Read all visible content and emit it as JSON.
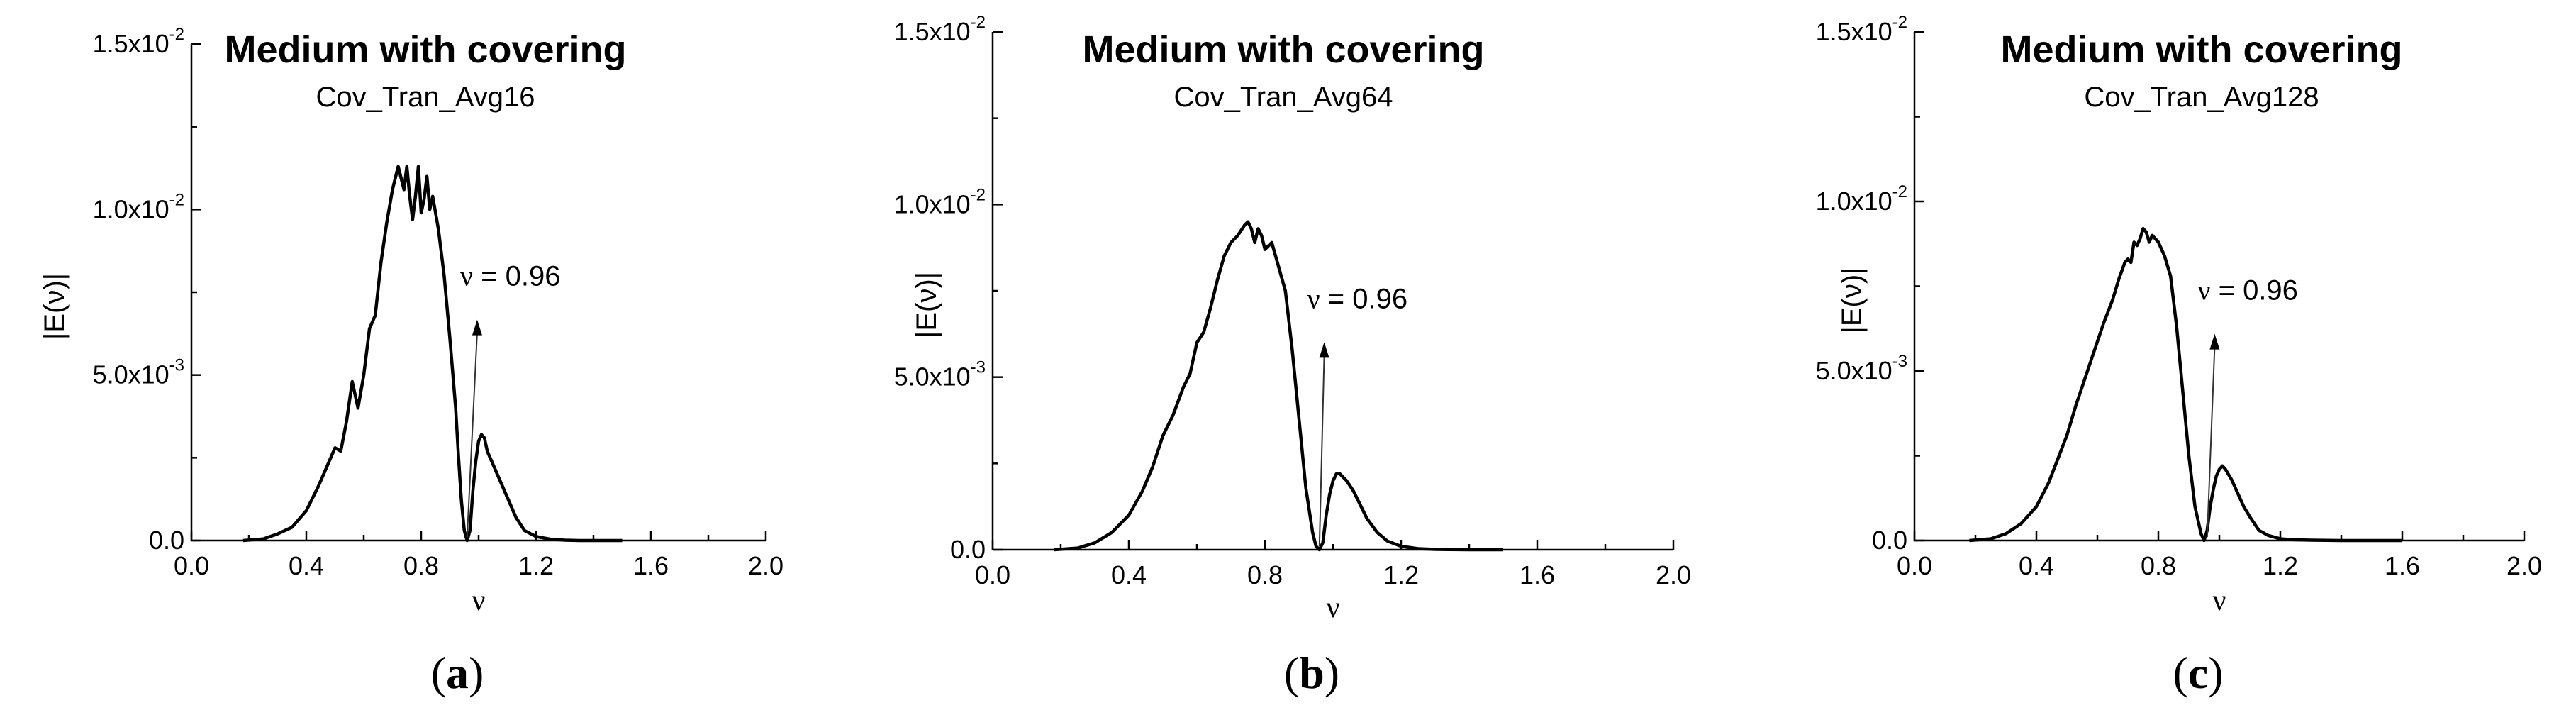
{
  "chart_data": [
    {
      "type": "line",
      "panel_label": "a",
      "title": "Medium with covering",
      "subtitle": "Cov_Tran_Avg16",
      "xlabel": "ν",
      "ylabel": "|E(ν)|",
      "xlim": [
        0.0,
        2.0
      ],
      "ylim": [
        0.0,
        0.015
      ],
      "xticks": [
        0.0,
        0.4,
        0.8,
        1.2,
        1.6,
        2.0
      ],
      "xtick_labels": [
        "0.0",
        "0.4",
        "0.8",
        "1.2",
        "1.6",
        "2.0"
      ],
      "yticks": [
        0.0,
        0.005,
        0.01,
        0.015
      ],
      "ytick_labels": [
        {
          "base": "0.0",
          "exp": ""
        },
        {
          "base": "5.0x10",
          "exp": "-3"
        },
        {
          "base": "1.0x10",
          "exp": "-2"
        },
        {
          "base": "1.5x10",
          "exp": "-2"
        }
      ],
      "annotation": {
        "prefix": "ν",
        "text": " = 0.96",
        "x": 0.96,
        "text_x": 0.99,
        "text_y": 0.0077
      },
      "series": [
        {
          "x": [
            0.18,
            0.25,
            0.3,
            0.35,
            0.4,
            0.44,
            0.47,
            0.5,
            0.52,
            0.54,
            0.56,
            0.58,
            0.6,
            0.62,
            0.64,
            0.66,
            0.68,
            0.7,
            0.72,
            0.74,
            0.75,
            0.76,
            0.77,
            0.78,
            0.79,
            0.8,
            0.81,
            0.82,
            0.83,
            0.84,
            0.86,
            0.88,
            0.9,
            0.92,
            0.93,
            0.94,
            0.95,
            0.96,
            0.97,
            0.98,
            0.99,
            1.0,
            1.01,
            1.02,
            1.03,
            1.05,
            1.07,
            1.1,
            1.13,
            1.16,
            1.2,
            1.25,
            1.3,
            1.35,
            1.4,
            1.5
          ],
          "y": [
            0.0,
            5e-05,
            0.0002,
            0.0004,
            0.0009,
            0.0016,
            0.0022,
            0.0028,
            0.0027,
            0.0036,
            0.0048,
            0.004,
            0.005,
            0.0064,
            0.0068,
            0.0084,
            0.0096,
            0.0106,
            0.0113,
            0.0106,
            0.0113,
            0.0104,
            0.0097,
            0.0104,
            0.0113,
            0.0099,
            0.0103,
            0.011,
            0.01,
            0.0104,
            0.0094,
            0.008,
            0.0061,
            0.004,
            0.0025,
            0.0012,
            0.0003,
            0.0,
            0.0003,
            0.0015,
            0.0024,
            0.003,
            0.0032,
            0.0031,
            0.0027,
            0.0023,
            0.0019,
            0.0013,
            0.0007,
            0.0003,
            0.00012,
            4e-05,
            1e-05,
            0.0,
            0.0,
            0.0
          ]
        }
      ]
    },
    {
      "type": "line",
      "panel_label": "b",
      "title": "Medium with covering",
      "subtitle": "Cov_Tran_Avg64",
      "xlabel": "ν",
      "ylabel": "|E(ν)|",
      "xlim": [
        0.0,
        2.0
      ],
      "ylim": [
        0.0,
        0.015
      ],
      "xticks": [
        0.0,
        0.4,
        0.8,
        1.2,
        1.6,
        2.0
      ],
      "xtick_labels": [
        "0.0",
        "0.4",
        "0.8",
        "1.2",
        "1.6",
        "2.0"
      ],
      "yticks": [
        0.0,
        0.005,
        0.01,
        0.015
      ],
      "ytick_labels": [
        {
          "base": "0.0",
          "exp": ""
        },
        {
          "base": "5.0x10",
          "exp": "-3"
        },
        {
          "base": "1.0x10",
          "exp": "-2"
        },
        {
          "base": "1.5x10",
          "exp": "-2"
        }
      ],
      "annotation": {
        "prefix": "ν",
        "text": " = 0.96",
        "x": 0.96,
        "text_x": 0.97,
        "text_y": 0.007
      },
      "series": [
        {
          "x": [
            0.18,
            0.25,
            0.3,
            0.35,
            0.4,
            0.44,
            0.47,
            0.5,
            0.53,
            0.56,
            0.58,
            0.6,
            0.62,
            0.64,
            0.66,
            0.68,
            0.7,
            0.72,
            0.74,
            0.75,
            0.76,
            0.77,
            0.78,
            0.79,
            0.8,
            0.82,
            0.84,
            0.86,
            0.88,
            0.9,
            0.92,
            0.94,
            0.95,
            0.96,
            0.97,
            0.98,
            0.99,
            1.0,
            1.01,
            1.02,
            1.04,
            1.06,
            1.08,
            1.1,
            1.13,
            1.16,
            1.2,
            1.25,
            1.3,
            1.4,
            1.5
          ],
          "y": [
            0.0,
            5e-05,
            0.0002,
            0.0005,
            0.001,
            0.0017,
            0.0024,
            0.0033,
            0.0039,
            0.0047,
            0.0051,
            0.006,
            0.0063,
            0.007,
            0.0078,
            0.0085,
            0.0089,
            0.0091,
            0.0094,
            0.0095,
            0.0093,
            0.0089,
            0.0093,
            0.0091,
            0.0087,
            0.0089,
            0.0082,
            0.0075,
            0.0058,
            0.0038,
            0.0018,
            0.0005,
            0.0001,
            0.0,
            0.0002,
            0.001,
            0.0016,
            0.002,
            0.0022,
            0.0022,
            0.002,
            0.0017,
            0.0013,
            0.0009,
            0.0005,
            0.00025,
            0.0001,
            3e-05,
            1e-05,
            0.0,
            0.0
          ]
        }
      ]
    },
    {
      "type": "line",
      "panel_label": "c",
      "title": "Medium with covering",
      "subtitle": "Cov_Tran_Avg128",
      "xlabel": "ν",
      "ylabel": "|E(ν)|",
      "xlim": [
        0.0,
        2.0
      ],
      "ylim": [
        0.0,
        0.015
      ],
      "xticks": [
        0.0,
        0.4,
        0.8,
        1.2,
        1.6,
        2.0
      ],
      "xtick_labels": [
        "0.0",
        "0.4",
        "0.8",
        "1.2",
        "1.6",
        "2.0"
      ],
      "yticks": [
        0.0,
        0.005,
        0.01,
        0.015
      ],
      "ytick_labels": [
        {
          "base": "0.0",
          "exp": ""
        },
        {
          "base": "5.0x10",
          "exp": "-3"
        },
        {
          "base": "1.0x10",
          "exp": "-2"
        },
        {
          "base": "1.5x10",
          "exp": "-2"
        }
      ],
      "annotation": {
        "prefix": "ν",
        "text": " = 0.96",
        "x": 0.96,
        "text_x": 0.98,
        "text_y": 0.0071
      },
      "series": [
        {
          "x": [
            0.18,
            0.25,
            0.3,
            0.35,
            0.4,
            0.44,
            0.47,
            0.5,
            0.53,
            0.56,
            0.59,
            0.62,
            0.65,
            0.67,
            0.69,
            0.7,
            0.71,
            0.72,
            0.73,
            0.74,
            0.75,
            0.76,
            0.77,
            0.78,
            0.79,
            0.8,
            0.82,
            0.84,
            0.86,
            0.88,
            0.9,
            0.92,
            0.94,
            0.95,
            0.96,
            0.97,
            0.98,
            0.99,
            1.0,
            1.01,
            1.02,
            1.04,
            1.06,
            1.08,
            1.1,
            1.13,
            1.16,
            1.2,
            1.25,
            1.3,
            1.4,
            1.5,
            1.6
          ],
          "y": [
            0.0,
            5e-05,
            0.0002,
            0.0005,
            0.001,
            0.0017,
            0.0024,
            0.0031,
            0.004,
            0.0048,
            0.0056,
            0.0064,
            0.0071,
            0.0077,
            0.0082,
            0.0083,
            0.0082,
            0.0088,
            0.0087,
            0.0089,
            0.0092,
            0.0091,
            0.0088,
            0.009,
            0.0089,
            0.0088,
            0.0084,
            0.0078,
            0.0063,
            0.0044,
            0.0025,
            0.001,
            0.0002,
            0.0,
            0.0003,
            0.001,
            0.0015,
            0.0019,
            0.0021,
            0.0022,
            0.0021,
            0.0018,
            0.0014,
            0.001,
            0.0007,
            0.0003,
            0.00015,
            5e-05,
            2e-05,
            1e-05,
            0.0,
            0.0,
            0.0
          ]
        }
      ]
    }
  ]
}
